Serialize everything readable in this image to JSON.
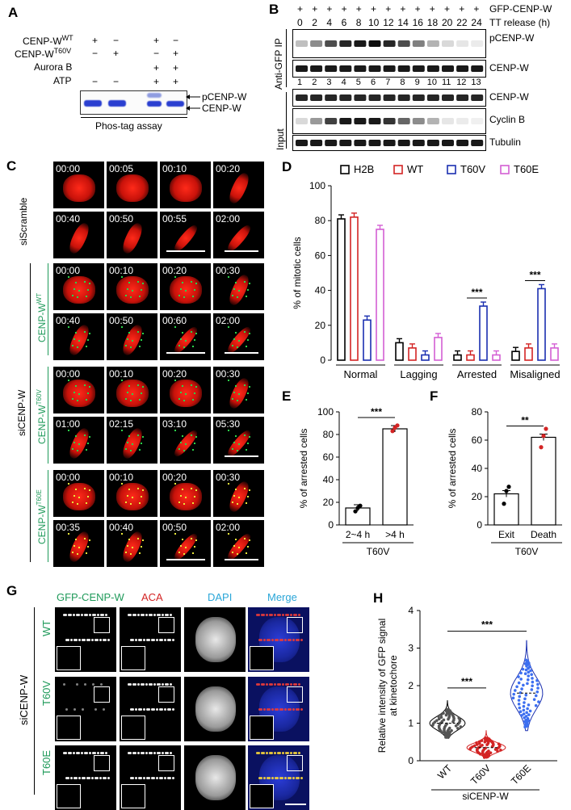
{
  "panels": {
    "A": "A",
    "B": "B",
    "C": "C",
    "D": "D",
    "E": "E",
    "F": "F",
    "G": "G",
    "H": "H"
  },
  "panelA": {
    "rows": [
      {
        "label": "CENP-W",
        "sup": "WT",
        "signs": [
          "+",
          "−",
          "+",
          "−"
        ]
      },
      {
        "label": "CENP-W",
        "sup": "T60V",
        "signs": [
          "−",
          "+",
          "−",
          "+"
        ]
      },
      {
        "label": "Aurora B",
        "sup": "",
        "signs": [
          "",
          "",
          "+",
          "+"
        ]
      },
      {
        "label": "ATP",
        "sup": "",
        "signs": [
          "−",
          "−",
          "+",
          "+"
        ]
      }
    ],
    "bands": [
      "pCENP-W",
      "CENP-W"
    ],
    "caption": "Phos-tag assay"
  },
  "panelB": {
    "top_row_label": "GFP-CENP-W",
    "time_label": "TT release (h)",
    "times": [
      "0",
      "2",
      "4",
      "6",
      "8",
      "10",
      "12",
      "14",
      "16",
      "18",
      "20",
      "22",
      "24"
    ],
    "lanes": [
      "1",
      "2",
      "3",
      "4",
      "5",
      "6",
      "7",
      "8",
      "9",
      "10",
      "11",
      "12",
      "13"
    ],
    "ip_label": "Anti-GFP IP",
    "input_label": "Input",
    "ip_bands": [
      "pCENP-W",
      "CENP-W"
    ],
    "input_bands": [
      "CENP-W",
      "Cyclin B",
      "Tubulin"
    ]
  },
  "panelC": {
    "side_label": "siCENP-W",
    "groups": [
      {
        "label": "siScramble",
        "sup": "",
        "times": [
          "00:00",
          "00:05",
          "00:10",
          "00:20",
          "00:40",
          "00:50",
          "00:55",
          "02:00"
        ]
      },
      {
        "label": "CENP-W",
        "sup": "WT",
        "times": [
          "00:00",
          "00:10",
          "00:20",
          "00:30",
          "00:40",
          "00:50",
          "00:60",
          "02:00"
        ]
      },
      {
        "label": "CENP-W",
        "sup": "T60V",
        "times": [
          "00:00",
          "00:10",
          "00:20",
          "00:30",
          "01:00",
          "02:15",
          "03:10",
          "05:30"
        ]
      },
      {
        "label": "CENP-W",
        "sup": "T60E",
        "times": [
          "00:00",
          "00:10",
          "00:20",
          "00:30",
          "00:35",
          "00:40",
          "00:50",
          "02:00"
        ]
      }
    ]
  },
  "panelG": {
    "columns": [
      "GFP-CENP-W",
      "ACA",
      "DAPI",
      "Merge"
    ],
    "rows": [
      "WT",
      "T60V",
      "T60E"
    ],
    "side_label": "siCENP-W"
  },
  "colors": {
    "H2B": "#000000",
    "WT": "#d32424",
    "T60V": "#1a2fb0",
    "T60E": "#d45fd4",
    "green_label": "#1f9a5a",
    "blue_label": "#2aa6d8"
  },
  "chart_data": [
    {
      "type": "bar",
      "panel": "D",
      "ylabel": "% of mitotic cells",
      "ylim": [
        0,
        100
      ],
      "yticks": [
        0,
        20,
        40,
        60,
        80,
        100
      ],
      "categories": [
        "Normal",
        "Lagging",
        "Arrested",
        "Misaligned"
      ],
      "series": [
        {
          "name": "H2B",
          "values": [
            81,
            10,
            3,
            5
          ]
        },
        {
          "name": "WT",
          "values": [
            82,
            7,
            3,
            7
          ]
        },
        {
          "name": "T60V",
          "values": [
            23,
            3,
            31,
            41
          ]
        },
        {
          "name": "T60E",
          "values": [
            75,
            13,
            3,
            7
          ]
        }
      ],
      "significance": [
        {
          "category": "Arrested",
          "label": "***"
        },
        {
          "category": "Misaligned",
          "label": "***"
        }
      ],
      "legend": "top"
    },
    {
      "type": "bar",
      "panel": "E",
      "ylabel": "% of arrested cells",
      "ylim": [
        0,
        100
      ],
      "yticks": [
        0,
        20,
        40,
        60,
        80,
        100
      ],
      "categories": [
        "2~4 h",
        ">4 h"
      ],
      "values": [
        15,
        85
      ],
      "group_label": "T60V",
      "significance": "***"
    },
    {
      "type": "bar",
      "panel": "F",
      "ylabel": "% of arrested cells",
      "ylim": [
        0,
        80
      ],
      "yticks": [
        0,
        20,
        40,
        60,
        80
      ],
      "categories": [
        "Exit",
        "Death"
      ],
      "values": [
        22,
        62
      ],
      "group_label": "T60V",
      "significance": "**"
    },
    {
      "type": "scatter",
      "panel": "H",
      "ylabel": "Relative intensity of GFP signal at kinetochore",
      "ylim": [
        0,
        4
      ],
      "yticks": [
        0,
        1,
        2,
        3,
        4
      ],
      "categories": [
        "WT",
        "T60V",
        "T60E"
      ],
      "medians": [
        1.0,
        0.35,
        1.8
      ],
      "group_label": "siCENP-W",
      "significance": [
        "***",
        "***"
      ]
    }
  ]
}
